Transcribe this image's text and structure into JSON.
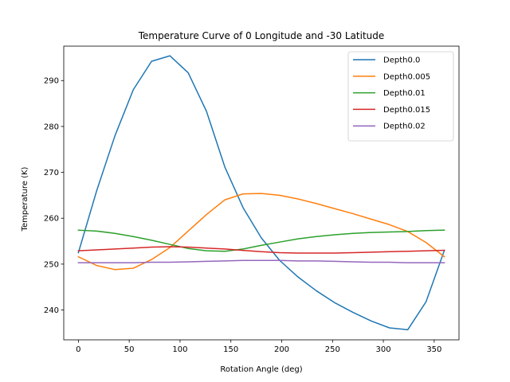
{
  "chart_data": {
    "type": "line",
    "title": "Temperature Curve of 0 Longitude and -30 Latitude",
    "xlabel": "Rotation Angle (deg)",
    "ylabel": "Temperature (K)",
    "xlim": [
      -14.4,
      374.4
    ],
    "ylim": [
      233.5,
      297.5
    ],
    "xticks": [
      0,
      50,
      100,
      150,
      200,
      250,
      300,
      350
    ],
    "yticks": [
      240,
      250,
      260,
      270,
      280,
      290
    ],
    "grid": false,
    "legend_position": "top-right",
    "x": [
      0,
      18,
      36,
      54,
      72,
      90,
      108,
      126,
      144,
      162,
      180,
      198,
      216,
      234,
      252,
      270,
      288,
      306,
      324,
      342,
      360
    ],
    "series": [
      {
        "name": "Depth0.0",
        "color": "#1f77b4",
        "values": [
          252.5,
          266.0,
          278.0,
          288.0,
          294.2,
          295.4,
          291.7,
          283.3,
          271.2,
          262.3,
          255.7,
          250.8,
          247.2,
          244.2,
          241.6,
          239.5,
          237.6,
          236.1,
          235.7,
          241.8,
          253.0
        ]
      },
      {
        "name": "Depth0.005",
        "color": "#ff7f0e",
        "values": [
          251.6,
          249.7,
          248.8,
          249.1,
          251.0,
          253.6,
          257.2,
          260.8,
          264.0,
          265.3,
          265.4,
          265.0,
          264.2,
          263.2,
          262.1,
          261.0,
          259.8,
          258.6,
          257.1,
          254.7,
          251.6
        ]
      },
      {
        "name": "Depth0.01",
        "color": "#2ca02c",
        "values": [
          257.4,
          257.2,
          256.7,
          256.0,
          255.2,
          254.3,
          253.4,
          252.9,
          252.8,
          253.3,
          254.1,
          254.8,
          255.5,
          256.0,
          256.4,
          256.7,
          256.9,
          257.0,
          257.1,
          257.3,
          257.4
        ]
      },
      {
        "name": "Depth0.015",
        "color": "#d62728",
        "values": [
          252.9,
          253.1,
          253.3,
          253.5,
          253.7,
          253.8,
          253.7,
          253.5,
          253.3,
          253.0,
          252.7,
          252.5,
          252.4,
          252.4,
          252.4,
          252.5,
          252.6,
          252.7,
          252.8,
          252.9,
          253.0
        ]
      },
      {
        "name": "Depth0.02",
        "color": "#9467bd",
        "values": [
          250.3,
          250.3,
          250.3,
          250.3,
          250.4,
          250.4,
          250.5,
          250.6,
          250.7,
          250.8,
          250.8,
          250.8,
          250.7,
          250.7,
          250.6,
          250.5,
          250.4,
          250.4,
          250.3,
          250.3,
          250.3
        ]
      }
    ]
  }
}
